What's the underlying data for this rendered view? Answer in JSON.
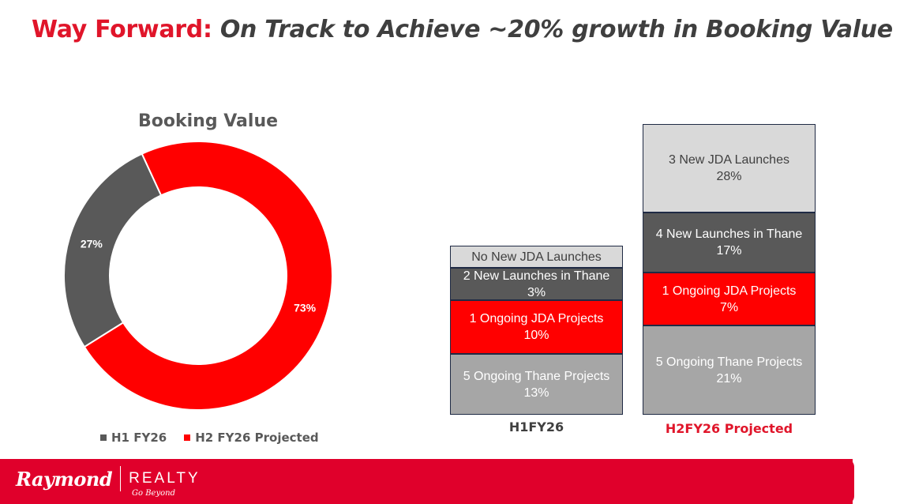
{
  "header": {
    "title_lead": "Way Forward:",
    "title_rest": "On Track to Achieve ~20% growth in Booking Value"
  },
  "colors": {
    "red": "#ff0000",
    "dark_gray": "#595959",
    "light_gray": "#d9d9d9",
    "mid_gray": "#a6a6a6",
    "brand_red": "#e0002b"
  },
  "chart_data": [
    {
      "type": "pie",
      "title": "Booking Value",
      "slices": [
        {
          "name": "H1 FY26",
          "value": 27,
          "label": "27%",
          "color": "#595959"
        },
        {
          "name": "H2 FY26 Projected",
          "value": 73,
          "label": "73%",
          "color": "#ff0000"
        }
      ],
      "legend": [
        "H1 FY26",
        "H2 FY26 Projected"
      ],
      "legend_position": "bottom"
    },
    {
      "type": "bar",
      "stacked": true,
      "categories": [
        "H1FY26",
        "H2FY26 Projected"
      ],
      "series": [
        {
          "name": "5 Ongoing Thane Projects",
          "values": [
            13,
            21
          ],
          "labels": [
            "13%",
            "21%"
          ],
          "color": "#a6a6a6"
        },
        {
          "name": "1 Ongoing JDA Projects",
          "values": [
            10,
            7
          ],
          "labels": [
            "10%",
            "7%"
          ],
          "color": "#ff0000"
        },
        {
          "name": "2 New Launches in Thane",
          "values": [
            3,
            null
          ],
          "labels": [
            "3%",
            ""
          ],
          "color": "#595959"
        },
        {
          "name": "4 New Launches in Thane",
          "values": [
            null,
            17
          ],
          "labels": [
            "",
            "17%"
          ],
          "color": "#595959"
        },
        {
          "name": "No New JDA Launches",
          "values": [
            0,
            null
          ],
          "labels": [
            "",
            ""
          ],
          "color": "#d9d9d9"
        },
        {
          "name": "3 New JDA Launches",
          "values": [
            null,
            28
          ],
          "labels": [
            "",
            "28%"
          ],
          "color": "#d9d9d9"
        }
      ]
    }
  ],
  "footer": {
    "brand": "Raymond",
    "realty": "REALTY",
    "tagline": "Go Beyond"
  }
}
